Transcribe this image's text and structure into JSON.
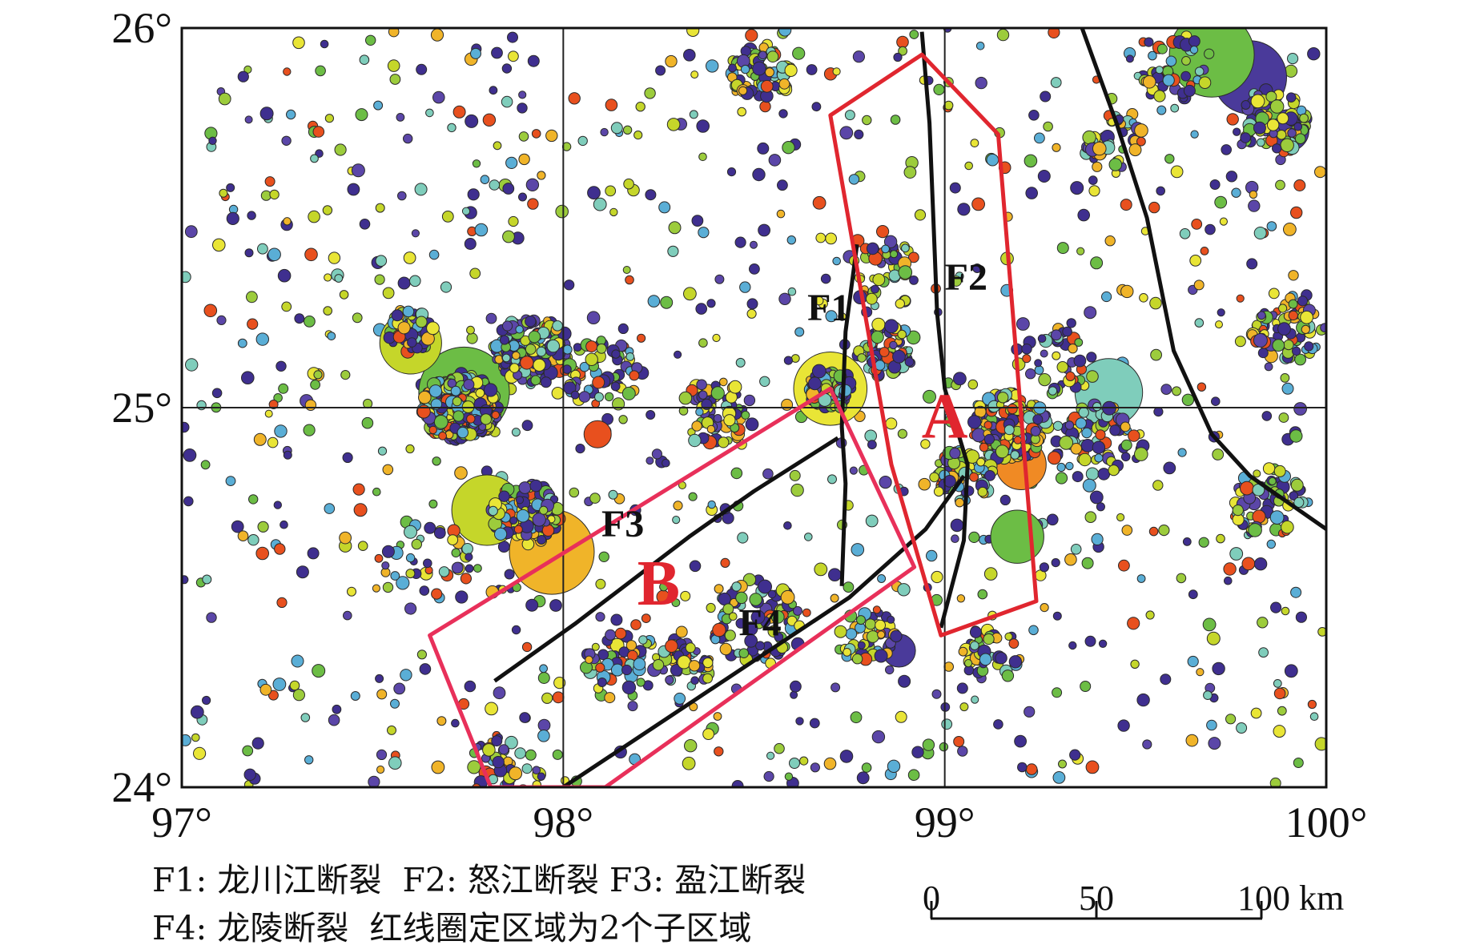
{
  "map": {
    "lon_range": [
      97,
      100
    ],
    "lat_range": [
      24,
      26
    ],
    "lon_ticks": [
      {
        "value": 97,
        "label": "97°"
      },
      {
        "value": 98,
        "label": "98°"
      },
      {
        "value": 99,
        "label": "99°"
      },
      {
        "value": 100,
        "label": "100°"
      }
    ],
    "lat_ticks": [
      {
        "value": 26,
        "label": "26°"
      },
      {
        "value": 25,
        "label": "25°"
      },
      {
        "value": 24,
        "label": "24°"
      }
    ],
    "grid": true
  },
  "faults": [
    {
      "id": "F1",
      "label": "F1",
      "label_at": [
        98.64,
        25.23
      ],
      "path": [
        [
          98.77,
          25.43
        ],
        [
          98.74,
          25.2
        ],
        [
          98.73,
          24.95
        ],
        [
          98.74,
          24.8
        ],
        [
          98.73,
          24.53
        ]
      ]
    },
    {
      "id": "F2",
      "label": "F2",
      "label_at": [
        99.0,
        25.31
      ],
      "path": [
        [
          98.94,
          25.99
        ],
        [
          98.96,
          25.75
        ],
        [
          98.97,
          25.5
        ],
        [
          98.98,
          25.25
        ],
        [
          99.0,
          25.05
        ],
        [
          99.06,
          24.85
        ],
        [
          99.05,
          24.65
        ],
        [
          98.99,
          24.42
        ]
      ]
    },
    {
      "id": "F3",
      "label": "F3",
      "label_at": [
        98.1,
        24.66
      ],
      "path": [
        [
          97.82,
          24.28
        ],
        [
          98.03,
          24.43
        ],
        [
          98.33,
          24.66
        ],
        [
          98.5,
          24.78
        ],
        [
          98.72,
          24.92
        ]
      ]
    },
    {
      "id": "F4",
      "label": "F4",
      "label_at": [
        98.46,
        24.4
      ],
      "path": [
        [
          98.0,
          24.0
        ],
        [
          98.45,
          24.3
        ],
        [
          98.75,
          24.5
        ],
        [
          98.95,
          24.68
        ],
        [
          99.05,
          24.82
        ]
      ]
    },
    {
      "id": "F5",
      "label": "",
      "path": [
        [
          99.36,
          26.0
        ],
        [
          99.45,
          25.75
        ],
        [
          99.53,
          25.5
        ],
        [
          99.6,
          25.15
        ],
        [
          99.7,
          24.93
        ],
        [
          99.8,
          24.82
        ],
        [
          100.0,
          24.68
        ]
      ]
    }
  ],
  "zones": [
    {
      "id": "A",
      "label": "A",
      "label_at": [
        99.0,
        24.98
      ],
      "polygon": [
        [
          98.7,
          25.77
        ],
        [
          98.94,
          25.93
        ],
        [
          99.14,
          25.72
        ],
        [
          99.24,
          24.49
        ],
        [
          98.99,
          24.4
        ],
        [
          98.86,
          24.85
        ],
        [
          98.7,
          25.77
        ]
      ]
    },
    {
      "id": "B",
      "label": "B",
      "label_at": [
        98.25,
        24.54
      ],
      "polygon": [
        [
          97.65,
          24.4
        ],
        [
          98.7,
          25.05
        ],
        [
          98.92,
          24.58
        ],
        [
          98.11,
          24.0
        ],
        [
          97.81,
          24.0
        ],
        [
          97.65,
          24.4
        ]
      ]
    }
  ],
  "large_events": [
    {
      "lon": 97.97,
      "lat": 24.62,
      "magnitude": 7.0,
      "color": "#f0b429"
    },
    {
      "lon": 97.8,
      "lat": 24.73,
      "magnitude": 6.5,
      "color": "#c5d62a"
    },
    {
      "lon": 97.74,
      "lat": 25.04,
      "magnitude": 7.2,
      "color": "#6cbd45"
    },
    {
      "lon": 98.7,
      "lat": 25.05,
      "magnitude": 6.6,
      "color": "#e9e536"
    },
    {
      "lon": 97.6,
      "lat": 25.17,
      "magnitude": 6.2,
      "color": "#c5d62a"
    },
    {
      "lon": 99.43,
      "lat": 25.04,
      "magnitude": 6.4,
      "color": "#7fcdbb"
    },
    {
      "lon": 99.19,
      "lat": 24.66,
      "magnitude": 5.9,
      "color": "#6cbd45"
    },
    {
      "lon": 99.2,
      "lat": 24.85,
      "magnitude": 5.8,
      "color": "#f08a24"
    },
    {
      "lon": 99.8,
      "lat": 25.87,
      "magnitude": 6.6,
      "color": "#4a3a9a"
    },
    {
      "lon": 99.7,
      "lat": 25.93,
      "magnitude": 7.0,
      "color": "#6cbd45"
    },
    {
      "lon": 98.88,
      "lat": 24.36,
      "magnitude": 5.2,
      "color": "#4a3a9a"
    },
    {
      "lon": 98.09,
      "lat": 24.93,
      "magnitude": 5.0,
      "color": "#e8501e"
    },
    {
      "lon": 99.9,
      "lat": 25.73,
      "magnitude": 5.5,
      "color": "#4a3a9a"
    }
  ],
  "event_palette": [
    "#3f2f8f",
    "#3f2f8f",
    "#3f2f8f",
    "#5b46a8",
    "#6cbd45",
    "#9ccc3c",
    "#c5d62a",
    "#e9e536",
    "#f0b429",
    "#e8501e",
    "#7fcdbb",
    "#5aaed6"
  ],
  "event_clusters": [
    {
      "lon": 97.73,
      "lat": 25.0,
      "r": 0.1,
      "n": 320
    },
    {
      "lon": 97.92,
      "lat": 25.15,
      "r": 0.1,
      "n": 160
    },
    {
      "lon": 97.9,
      "lat": 24.72,
      "r": 0.09,
      "n": 120
    },
    {
      "lon": 97.6,
      "lat": 25.2,
      "r": 0.06,
      "n": 50
    },
    {
      "lon": 98.1,
      "lat": 25.09,
      "r": 0.1,
      "n": 60
    },
    {
      "lon": 98.4,
      "lat": 24.98,
      "r": 0.1,
      "n": 70
    },
    {
      "lon": 98.7,
      "lat": 25.05,
      "r": 0.06,
      "n": 90
    },
    {
      "lon": 98.85,
      "lat": 25.15,
      "r": 0.08,
      "n": 60
    },
    {
      "lon": 99.17,
      "lat": 24.95,
      "r": 0.1,
      "n": 140
    },
    {
      "lon": 99.05,
      "lat": 24.82,
      "r": 0.08,
      "n": 60
    },
    {
      "lon": 98.5,
      "lat": 24.44,
      "r": 0.12,
      "n": 70
    },
    {
      "lon": 98.32,
      "lat": 24.32,
      "r": 0.07,
      "n": 50
    },
    {
      "lon": 98.15,
      "lat": 24.32,
      "r": 0.1,
      "n": 50
    },
    {
      "lon": 97.85,
      "lat": 24.05,
      "r": 0.1,
      "n": 50
    },
    {
      "lon": 98.8,
      "lat": 24.4,
      "r": 0.08,
      "n": 45
    },
    {
      "lon": 99.6,
      "lat": 25.9,
      "r": 0.1,
      "n": 40
    },
    {
      "lon": 99.85,
      "lat": 25.75,
      "r": 0.1,
      "n": 70
    },
    {
      "lon": 99.45,
      "lat": 25.7,
      "r": 0.08,
      "n": 40
    },
    {
      "lon": 99.9,
      "lat": 25.2,
      "r": 0.1,
      "n": 70
    },
    {
      "lon": 99.85,
      "lat": 24.75,
      "r": 0.1,
      "n": 60
    },
    {
      "lon": 98.52,
      "lat": 25.88,
      "r": 0.08,
      "n": 70
    },
    {
      "lon": 98.85,
      "lat": 25.35,
      "r": 0.1,
      "n": 45
    },
    {
      "lon": 99.4,
      "lat": 24.9,
      "r": 0.12,
      "n": 60
    },
    {
      "lon": 99.12,
      "lat": 24.35,
      "r": 0.08,
      "n": 40
    },
    {
      "lon": 97.65,
      "lat": 24.6,
      "r": 0.12,
      "n": 35
    },
    {
      "lon": 99.3,
      "lat": 25.12,
      "r": 0.1,
      "n": 40
    }
  ],
  "scale_bar": {
    "ticks": [
      "0",
      "50",
      "100 km"
    ]
  },
  "legend": {
    "line1": "F1: 龙川江断裂  F2: 怒江断裂 F3: 盈江断裂",
    "line2": "F4: 龙陵断裂  红线圈定区域为2个子区域"
  }
}
